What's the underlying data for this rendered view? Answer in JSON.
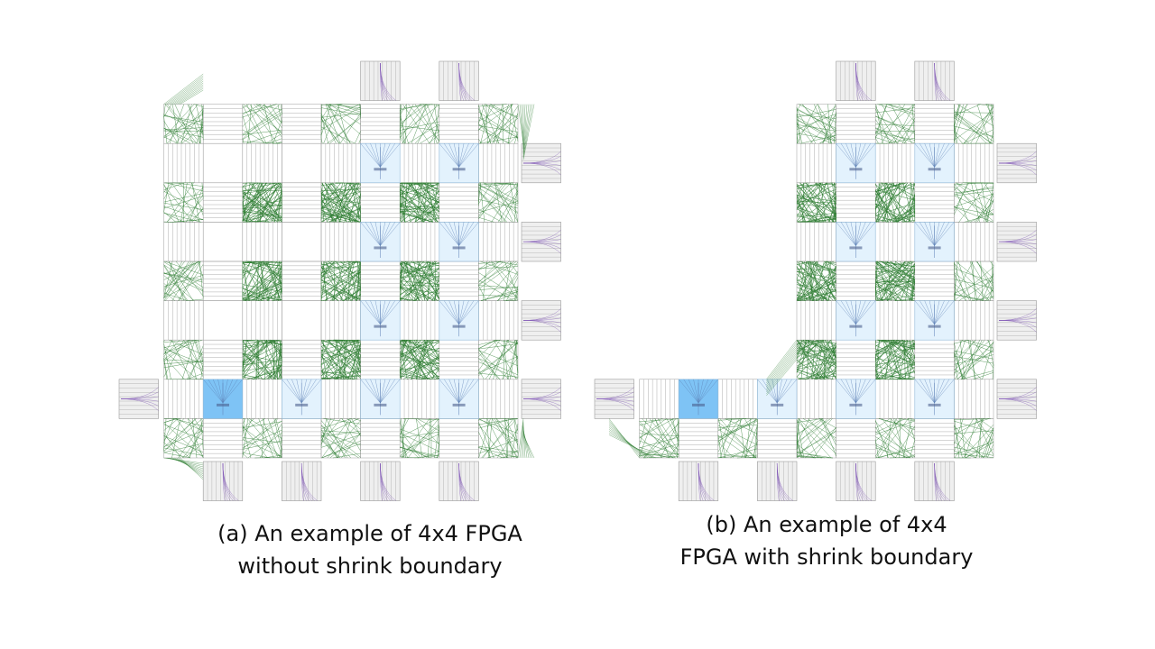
{
  "captions": {
    "a": {
      "line1": "(a) An example of 4x4 FPGA",
      "line2": "without shrink boundary"
    },
    "b": {
      "line1": "(b) An example of 4x4",
      "line2": "FPGA with shrink boundary"
    }
  },
  "colors": {
    "routing_green": "#2e7d32",
    "clb_light_blue": "#e3f2fd",
    "clb_selected_blue": "#7ec3f5",
    "io_grey": "#efefef",
    "io_purple": "#7a4fb3",
    "grid_line": "#9e9e9e"
  },
  "diagrams": [
    {
      "id": "a",
      "active_cols": [
        1,
        2,
        3,
        4
      ],
      "active_rows": [
        1,
        2,
        3,
        4
      ],
      "shrink_boundary": false
    },
    {
      "id": "b",
      "active_cols": [
        3,
        4
      ],
      "active_rows": [
        1,
        2,
        3,
        4
      ],
      "bottom_row_full": true,
      "shrink_boundary": true
    }
  ]
}
